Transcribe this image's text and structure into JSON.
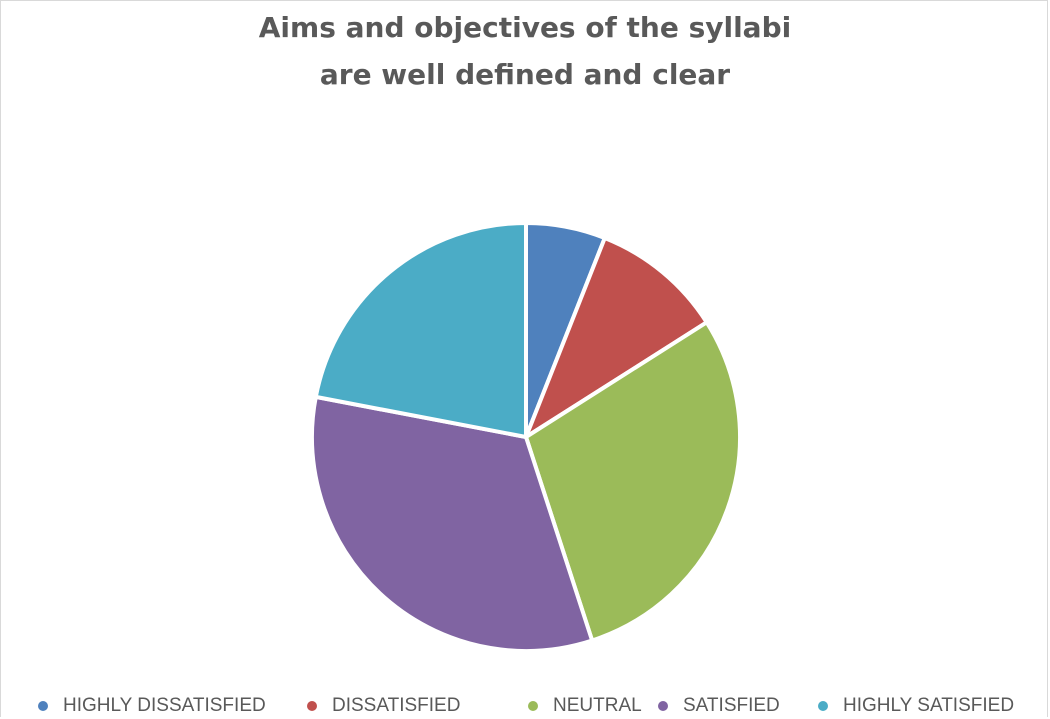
{
  "chart_data": {
    "type": "pie",
    "title": "Aims and objectives of the syllabi are well defined and clear",
    "categories": [
      "HIGHLY DISSATISFIED",
      "DISSATISFIED",
      "NEUTRAL",
      "SATISFIED",
      "HIGHLY SATISFIED"
    ],
    "values": [
      6,
      10,
      29,
      33,
      22
    ],
    "colors": [
      "#4f81bd",
      "#c0504d",
      "#9bbb59",
      "#8064a2",
      "#4bacc6"
    ],
    "legend_position": "bottom"
  }
}
